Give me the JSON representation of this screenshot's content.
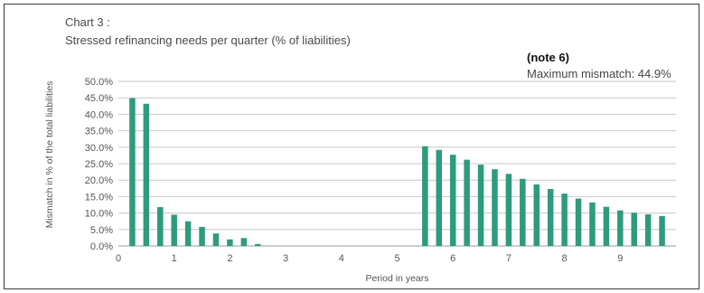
{
  "chart_data": {
    "type": "bar",
    "title": "Chart 3 :",
    "subtitle": "Stressed refinancing needs per quarter  (% of liabilities)",
    "note": "(note 6)",
    "annotation": "Maximum mismatch: 44.9%",
    "xlabel": "Period in years",
    "ylabel": "Mismatch in % of the total liabilities",
    "ylim": [
      0,
      50
    ],
    "xlim": [
      0,
      10
    ],
    "y_ticks": [
      "0.0%",
      "5.0%",
      "10.0%",
      "15.0%",
      "20.0%",
      "25.0%",
      "30.0%",
      "35.0%",
      "40.0%",
      "45.0%",
      "50.0%"
    ],
    "x_ticks": [
      "0",
      "1",
      "2",
      "3",
      "4",
      "5",
      "6",
      "7",
      "8",
      "9"
    ],
    "grid": true,
    "bar_color": "#2e9b7c",
    "x": [
      0.25,
      0.5,
      0.75,
      1.0,
      1.25,
      1.5,
      1.75,
      2.0,
      2.25,
      2.5,
      2.75,
      3.0,
      3.25,
      3.5,
      3.75,
      4.0,
      4.25,
      4.5,
      4.75,
      5.0,
      5.25,
      5.5,
      5.75,
      6.0,
      6.25,
      6.5,
      6.75,
      7.0,
      7.25,
      7.5,
      7.75,
      8.0,
      8.25,
      8.5,
      8.75,
      9.0,
      9.25,
      9.5,
      9.75
    ],
    "values": [
      44.9,
      43.2,
      11.8,
      9.5,
      7.5,
      5.8,
      3.8,
      2.0,
      2.4,
      0.6,
      0,
      0,
      0,
      0,
      0,
      0,
      0,
      0,
      0,
      0,
      0,
      30.3,
      29.2,
      27.7,
      26.2,
      24.7,
      23.3,
      21.9,
      20.4,
      18.7,
      17.3,
      15.9,
      14.4,
      13.2,
      11.9,
      10.8,
      10.1,
      9.6,
      9.1
    ]
  }
}
